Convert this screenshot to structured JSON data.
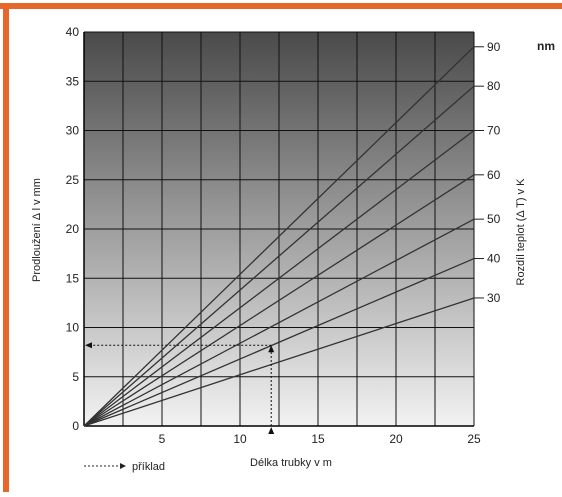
{
  "chart_data": {
    "type": "line",
    "title": "",
    "xlabel": "Délka trubky v m",
    "ylabel": "Prodloužení Δ l v mm",
    "y2label": "Rozdíl teplot (Δ T) v K",
    "y2_unit_label": "nm",
    "xlim": [
      0,
      25
    ],
    "ylim": [
      0,
      40
    ],
    "x_ticks": [
      5,
      10,
      15,
      20,
      25
    ],
    "y_ticks": [
      0,
      5,
      10,
      15,
      20,
      25,
      30,
      35,
      40
    ],
    "y2_ticks": [
      {
        "label": "90",
        "y": 38.5
      },
      {
        "label": "80",
        "y": 34.5
      },
      {
        "label": "70",
        "y": 30
      },
      {
        "label": "60",
        "y": 25.5
      },
      {
        "label": "50",
        "y": 21
      },
      {
        "label": "40",
        "y": 17
      },
      {
        "label": "30",
        "y": 13
      }
    ],
    "grid": true,
    "series": [
      {
        "dT": 90,
        "x": [
          0,
          25
        ],
        "y": [
          0,
          38.5
        ]
      },
      {
        "dT": 80,
        "x": [
          0,
          25
        ],
        "y": [
          0,
          34.5
        ]
      },
      {
        "dT": 70,
        "x": [
          0,
          25
        ],
        "y": [
          0,
          30
        ]
      },
      {
        "dT": 60,
        "x": [
          0,
          25
        ],
        "y": [
          0,
          25.5
        ]
      },
      {
        "dT": 50,
        "x": [
          0,
          25
        ],
        "y": [
          0,
          21
        ]
      },
      {
        "dT": 40,
        "x": [
          0,
          25
        ],
        "y": [
          0,
          17
        ]
      },
      {
        "dT": 30,
        "x": [
          0,
          25
        ],
        "y": [
          0,
          13
        ]
      }
    ],
    "example": {
      "x": 12,
      "y": 8.2,
      "label": "příklad"
    },
    "legend_position": "bottom-left",
    "colors": {
      "frame": "#e8662a",
      "grid": "#111111",
      "line": "#333333",
      "bg_top": "#4a4a4a",
      "bg_bottom": "#f2f2f2"
    }
  }
}
